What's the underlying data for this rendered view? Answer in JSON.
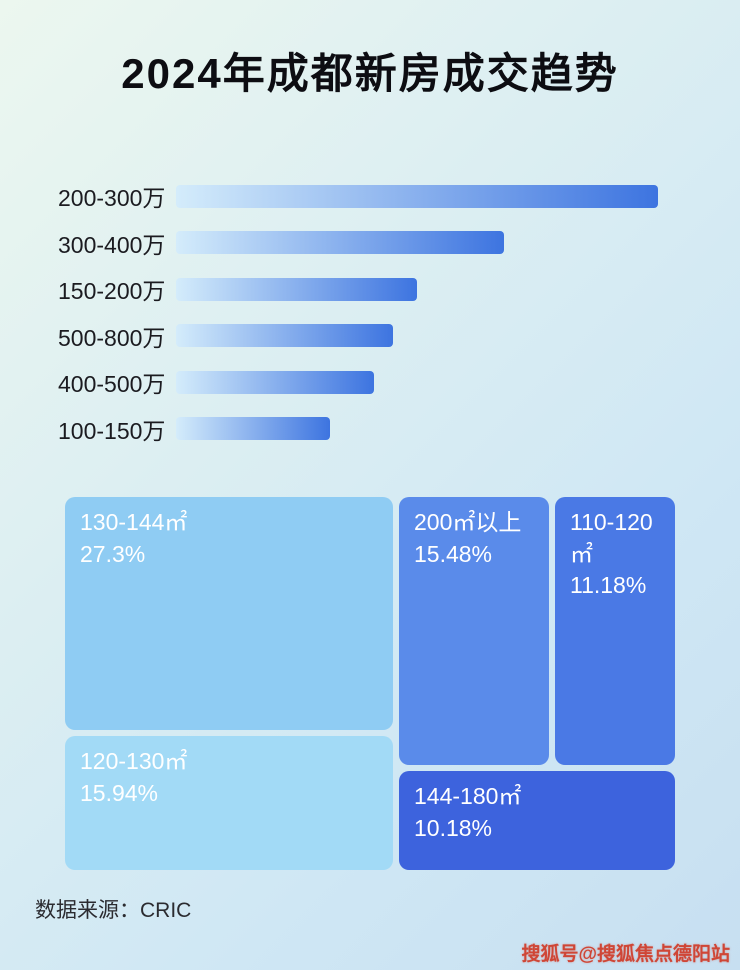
{
  "page": {
    "title": "2024年成都新房成交趋势",
    "source_label": "数据来源：CRIC",
    "watermark": "搜狐号@搜狐焦点德阳站"
  },
  "chart_data": [
    {
      "type": "bar",
      "orientation": "horizontal",
      "title": "2024年成都新房成交趋势",
      "categories": [
        "200-300万",
        "300-400万",
        "150-200万",
        "500-800万",
        "400-500万",
        "100-150万"
      ],
      "values": [
        100,
        68,
        50,
        45,
        41,
        32
      ],
      "value_unit": "relative length, % of longest bar (no numeric labels shown in image)",
      "bar_gradient": [
        "#d4ecfb",
        "#3d74e0"
      ],
      "xlabel": "",
      "ylabel": "",
      "grid": false,
      "legend": false
    },
    {
      "type": "treemap",
      "blocks": [
        {
          "label": "130-144㎡",
          "value": "27.3%",
          "color": "#8fccf3"
        },
        {
          "label": "200㎡以上",
          "value": "15.48%",
          "color": "#5a8bea"
        },
        {
          "label": "110-120㎡",
          "value": "11.18%",
          "color": "#4a79e5"
        },
        {
          "label": "120-130㎡",
          "value": "15.94%",
          "color": "#a2daf6"
        },
        {
          "label": "144-180㎡",
          "value": "10.18%",
          "color": "#3d63dd"
        }
      ]
    }
  ]
}
